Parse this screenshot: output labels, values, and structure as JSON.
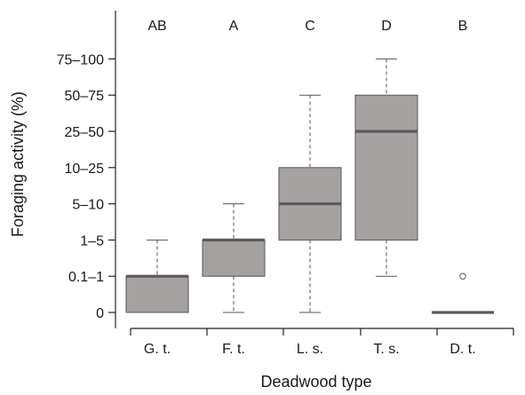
{
  "chart_data": {
    "type": "box",
    "xlabel": "Deadwood type",
    "ylabel": "Foraging activity (%)",
    "y_categories": [
      "0",
      "0.1–1",
      "1–5",
      "5–10",
      "10–25",
      "25–50",
      "50–75",
      "75–100"
    ],
    "categories": [
      "G. t.",
      "F. t.",
      "L. s.",
      "T. s.",
      "D. t."
    ],
    "group_letters": [
      "AB",
      "A",
      "C",
      "D",
      "B"
    ],
    "boxes": [
      {
        "category": "G. t.",
        "min": 0,
        "q1": 0,
        "median": 1,
        "q3": 1,
        "max": 2,
        "outliers": []
      },
      {
        "category": "F. t.",
        "min": 0,
        "q1": 1,
        "median": 2,
        "q3": 2,
        "max": 3,
        "outliers": []
      },
      {
        "category": "L. s.",
        "min": 0,
        "q1": 2,
        "median": 3,
        "q3": 4,
        "max": 6,
        "outliers": []
      },
      {
        "category": "T. s.",
        "min": 1,
        "q1": 2,
        "median": 5,
        "q3": 6,
        "max": 7,
        "outliers": []
      },
      {
        "category": "D. t.",
        "min": 0,
        "q1": 0,
        "median": 0,
        "q3": 0,
        "max": 0,
        "outliers": [
          1
        ]
      }
    ],
    "y_range": [
      0,
      7
    ],
    "grid": false,
    "colors": {
      "box_fill": "#a6a1a1",
      "median": "#5a5a5a",
      "outline": "#555555",
      "axis": "#222222"
    }
  }
}
